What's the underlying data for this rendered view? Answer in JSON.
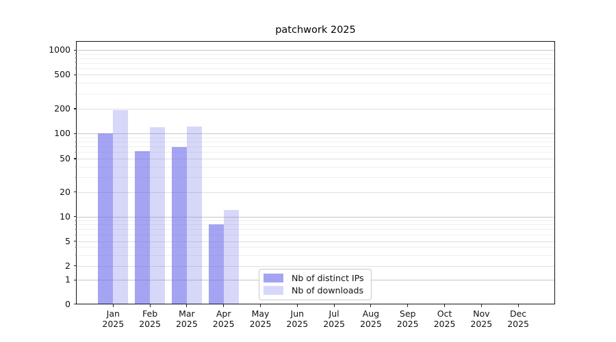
{
  "figure": {
    "title": "patchwork 2025"
  },
  "chart_data": {
    "type": "bar",
    "title": "patchwork 2025",
    "x_months": [
      "Jan",
      "Feb",
      "Mar",
      "Apr",
      "May",
      "Jun",
      "Jul",
      "Aug",
      "Sep",
      "Oct",
      "Nov",
      "Dec"
    ],
    "x_year": "2025",
    "series": [
      {
        "name": "Nb of distinct IPs",
        "color": "#6c6ceb",
        "alpha": 0.62,
        "values": [
          100,
          62,
          69,
          8,
          0,
          0,
          0,
          0,
          0,
          0,
          0,
          0
        ]
      },
      {
        "name": "Nb of downloads",
        "color": "#6c6ceb",
        "alpha": 0.27,
        "values": [
          193,
          119,
          122,
          12,
          0,
          0,
          0,
          0,
          0,
          0,
          0,
          0
        ]
      }
    ],
    "y_ticks": [
      0,
      1,
      2,
      5,
      10,
      20,
      50,
      100,
      200,
      500,
      1000
    ],
    "y_scale": "symlog (linear below 1, logarithmic above)",
    "ylim": [
      0,
      1260
    ],
    "grid": "horizontal major and minor gridlines",
    "legend_loc": "lower center inside plot"
  },
  "colors": {
    "major_grid": "#c6c6c6",
    "mid_grid": "#dedede",
    "minor_grid": "#efefef",
    "spine": "#111111",
    "text": "#111111",
    "legend_border": "#c9c9c9"
  }
}
